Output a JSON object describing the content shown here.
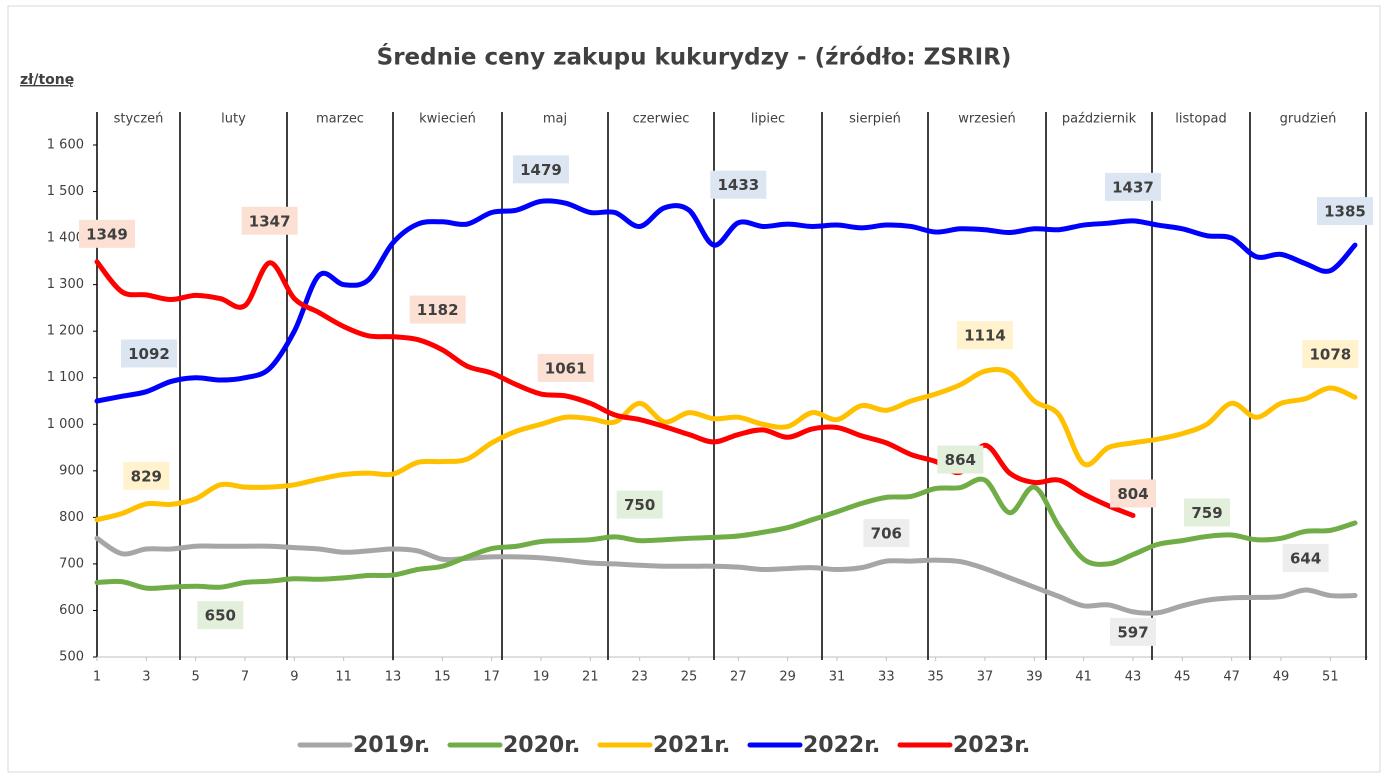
{
  "chart_data": {
    "type": "line",
    "title": "Średnie ceny zakupu kukurydzy - (źródło: ZSRIR)",
    "y_label": "zł/tonę",
    "months": [
      "styczeń",
      "luty",
      "marzec",
      "kwiecień",
      "maj",
      "czerwiec",
      "lipiec",
      "sierpień",
      "wrzesień",
      "październik",
      "listopad",
      "grudzień"
    ],
    "x": [
      1,
      2,
      3,
      4,
      5,
      6,
      7,
      8,
      9,
      10,
      11,
      12,
      13,
      14,
      15,
      16,
      17,
      18,
      19,
      20,
      21,
      22,
      23,
      24,
      25,
      26,
      27,
      28,
      29,
      30,
      31,
      32,
      33,
      34,
      35,
      36,
      37,
      38,
      39,
      40,
      41,
      42,
      43,
      44,
      45,
      46,
      47,
      48,
      49,
      50,
      51,
      52
    ],
    "xlim": [
      1,
      52
    ],
    "xticks": [
      1,
      3,
      5,
      7,
      9,
      11,
      13,
      15,
      17,
      19,
      21,
      23,
      25,
      27,
      29,
      31,
      33,
      35,
      37,
      39,
      41,
      43,
      45,
      47,
      49,
      51
    ],
    "ylim": [
      500,
      1600
    ],
    "yticks": [
      500,
      600,
      700,
      800,
      900,
      {
        "value": 1000,
        "label": "1 000"
      },
      {
        "value": 1100,
        "label": "1 100"
      },
      {
        "value": 1200,
        "label": "1 200"
      },
      {
        "value": 1300,
        "label": "1 300"
      },
      {
        "value": 1400,
        "label": "1 400"
      },
      {
        "value": 1500,
        "label": "1 500"
      },
      {
        "value": 1600,
        "label": "1 600"
      }
    ],
    "legend": "bottom",
    "series": [
      {
        "name": "2019r.",
        "color": "#a6a6a6",
        "values": [
          755,
          722,
          732,
          732,
          738,
          738,
          738,
          738,
          735,
          732,
          725,
          728,
          732,
          728,
          710,
          712,
          715,
          715,
          713,
          708,
          702,
          700,
          697,
          695,
          695,
          695,
          693,
          688,
          690,
          692,
          688,
          692,
          706,
          706,
          708,
          705,
          690,
          670,
          650,
          630,
          610,
          612,
          597,
          595,
          610,
          622,
          627,
          628,
          630,
          644,
          632,
          632
        ],
        "value_labels": [
          null,
          null,
          null,
          null,
          null,
          null,
          null,
          null,
          null,
          null,
          null,
          null,
          null,
          null,
          null,
          null,
          null,
          null,
          null,
          null,
          null,
          null,
          null,
          null,
          null,
          null,
          null,
          null,
          null,
          null,
          null,
          null,
          "706",
          null,
          null,
          null,
          null,
          null,
          null,
          null,
          null,
          null,
          "597",
          null,
          null,
          null,
          null,
          null,
          null,
          "644",
          null,
          null
        ]
      },
      {
        "name": "2020r.",
        "color": "#70ad47",
        "values": [
          660,
          662,
          648,
          650,
          652,
          650,
          660,
          663,
          668,
          667,
          670,
          675,
          676,
          688,
          695,
          715,
          733,
          738,
          748,
          750,
          752,
          758,
          750,
          752,
          755,
          757,
          760,
          768,
          778,
          795,
          812,
          830,
          843,
          845,
          862,
          864,
          880,
          810,
          865,
          780,
          710,
          700,
          720,
          742,
          750,
          759,
          762,
          752,
          755,
          770,
          772,
          788
        ],
        "value_labels": [
          null,
          null,
          null,
          null,
          null,
          "650",
          null,
          null,
          null,
          null,
          null,
          null,
          null,
          null,
          null,
          null,
          null,
          null,
          null,
          null,
          null,
          null,
          "750",
          null,
          null,
          null,
          null,
          null,
          null,
          null,
          null,
          null,
          null,
          null,
          null,
          "864",
          null,
          null,
          null,
          null,
          null,
          null,
          null,
          null,
          null,
          "759",
          null,
          null,
          null,
          null,
          null,
          null
        ]
      },
      {
        "name": "2021r.",
        "color": "#ffc000",
        "values": [
          795,
          808,
          829,
          828,
          840,
          870,
          865,
          865,
          870,
          882,
          892,
          895,
          893,
          918,
          920,
          925,
          960,
          985,
          1000,
          1015,
          1012,
          1005,
          1045,
          1005,
          1025,
          1012,
          1015,
          1000,
          995,
          1025,
          1010,
          1040,
          1030,
          1050,
          1065,
          1085,
          1114,
          1110,
          1050,
          1020,
          915,
          950,
          960,
          968,
          980,
          1000,
          1045,
          1015,
          1045,
          1055,
          1078,
          1058
        ],
        "value_labels": [
          null,
          null,
          "829",
          null,
          null,
          null,
          null,
          null,
          null,
          null,
          null,
          null,
          null,
          null,
          null,
          null,
          null,
          null,
          null,
          null,
          null,
          null,
          null,
          null,
          null,
          null,
          null,
          null,
          null,
          null,
          null,
          null,
          null,
          null,
          null,
          null,
          "1114",
          null,
          null,
          null,
          null,
          null,
          null,
          null,
          null,
          null,
          null,
          null,
          null,
          null,
          "1078",
          null
        ]
      },
      {
        "name": "2022r.",
        "color": "#0000ff",
        "values": [
          1050,
          1060,
          1070,
          1092,
          1100,
          1095,
          1100,
          1120,
          1200,
          1320,
          1300,
          1310,
          1390,
          1430,
          1435,
          1430,
          1455,
          1460,
          1479,
          1475,
          1455,
          1455,
          1425,
          1465,
          1460,
          1385,
          1433,
          1425,
          1430,
          1425,
          1428,
          1422,
          1428,
          1425,
          1413,
          1420,
          1418,
          1412,
          1420,
          1418,
          1428,
          1432,
          1437,
          1428,
          1420,
          1405,
          1400,
          1360,
          1365,
          1345,
          1330,
          1385
        ],
        "value_labels": [
          null,
          null,
          null,
          "1092",
          null,
          null,
          null,
          null,
          null,
          null,
          null,
          null,
          null,
          null,
          null,
          null,
          null,
          null,
          "1479",
          null,
          null,
          null,
          null,
          null,
          null,
          null,
          "1433",
          null,
          null,
          null,
          null,
          null,
          null,
          null,
          null,
          null,
          null,
          null,
          null,
          null,
          null,
          null,
          "1437",
          null,
          null,
          null,
          null,
          null,
          null,
          null,
          null,
          "1385"
        ]
      },
      {
        "name": "2023r.",
        "color": "#ff0000",
        "values": [
          1349,
          1285,
          1278,
          1268,
          1277,
          1270,
          1255,
          1347,
          1270,
          1240,
          1210,
          1190,
          1188,
          1182,
          1160,
          1125,
          1110,
          1085,
          1065,
          1061,
          1045,
          1020,
          1010,
          995,
          978,
          962,
          978,
          988,
          972,
          990,
          993,
          975,
          960,
          935,
          920,
          897,
          955,
          895,
          875,
          880,
          850,
          825,
          804,
          null,
          null,
          null,
          null,
          null,
          null,
          null,
          null,
          null
        ],
        "value_labels": [
          "1349",
          null,
          null,
          null,
          null,
          null,
          null,
          "1347",
          null,
          null,
          null,
          null,
          null,
          "1182",
          null,
          null,
          null,
          null,
          null,
          "1061",
          null,
          null,
          null,
          null,
          null,
          null,
          null,
          null,
          null,
          null,
          null,
          null,
          null,
          null,
          null,
          null,
          null,
          null,
          null,
          null,
          null,
          null,
          "804",
          null,
          null,
          null,
          null,
          null,
          null,
          null,
          null,
          null
        ]
      }
    ]
  }
}
